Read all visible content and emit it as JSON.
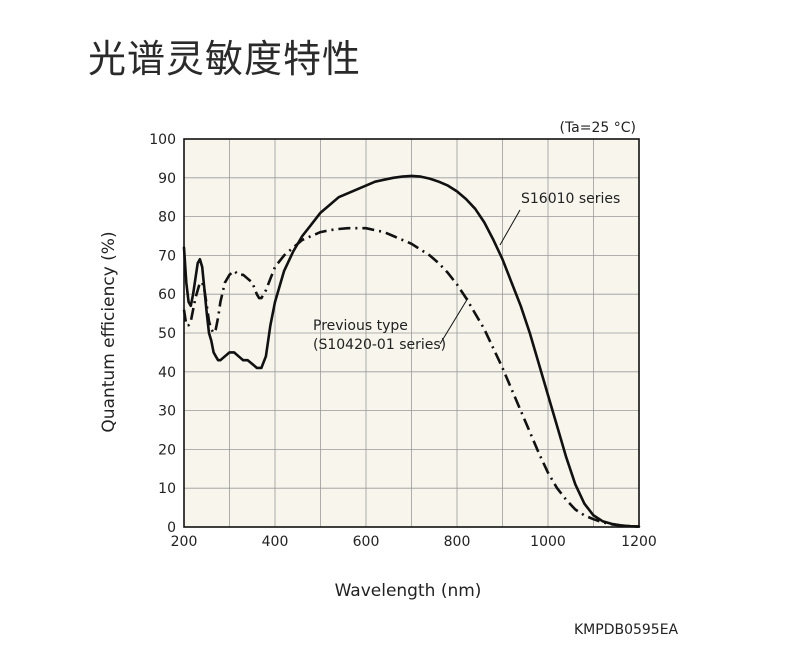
{
  "page": {
    "title": "光谱灵敏度特性",
    "figure_code": "KMPDB0595EA"
  },
  "chart_data": {
    "type": "line",
    "condition": "(Ta=25 °C)",
    "xlabel": "Wavelength (nm)",
    "ylabel": "Quantum efficiency (%)",
    "xlim": [
      200,
      1200
    ],
    "ylim": [
      0,
      100
    ],
    "xticks": [
      200,
      400,
      600,
      800,
      1000,
      1200
    ],
    "yticks": [
      0,
      10,
      20,
      30,
      40,
      50,
      60,
      70,
      80,
      90,
      100
    ],
    "grid": true,
    "series": [
      {
        "name": "S16010 series",
        "style": "solid",
        "color": "#111111",
        "points": [
          [
            200,
            72
          ],
          [
            205,
            63
          ],
          [
            210,
            58
          ],
          [
            215,
            57
          ],
          [
            220,
            60
          ],
          [
            225,
            64
          ],
          [
            230,
            68
          ],
          [
            235,
            69
          ],
          [
            240,
            67
          ],
          [
            245,
            61
          ],
          [
            250,
            55
          ],
          [
            255,
            50
          ],
          [
            260,
            48
          ],
          [
            265,
            45
          ],
          [
            270,
            44
          ],
          [
            275,
            43
          ],
          [
            280,
            43
          ],
          [
            290,
            44
          ],
          [
            300,
            45
          ],
          [
            310,
            45
          ],
          [
            320,
            44
          ],
          [
            330,
            43
          ],
          [
            340,
            43
          ],
          [
            350,
            42
          ],
          [
            360,
            41
          ],
          [
            370,
            41
          ],
          [
            380,
            44
          ],
          [
            390,
            52
          ],
          [
            400,
            58
          ],
          [
            420,
            66
          ],
          [
            440,
            71
          ],
          [
            460,
            75
          ],
          [
            480,
            78
          ],
          [
            500,
            81
          ],
          [
            520,
            83
          ],
          [
            540,
            85
          ],
          [
            560,
            86
          ],
          [
            580,
            87
          ],
          [
            600,
            88
          ],
          [
            620,
            89
          ],
          [
            640,
            89.5
          ],
          [
            660,
            90
          ],
          [
            680,
            90.3
          ],
          [
            700,
            90.5
          ],
          [
            720,
            90.3
          ],
          [
            740,
            89.8
          ],
          [
            760,
            89
          ],
          [
            780,
            88
          ],
          [
            800,
            86.5
          ],
          [
            820,
            84.5
          ],
          [
            840,
            82
          ],
          [
            860,
            78.5
          ],
          [
            880,
            74
          ],
          [
            900,
            69
          ],
          [
            920,
            63
          ],
          [
            940,
            57
          ],
          [
            960,
            50
          ],
          [
            980,
            42
          ],
          [
            1000,
            34
          ],
          [
            1020,
            26
          ],
          [
            1040,
            18
          ],
          [
            1060,
            11
          ],
          [
            1080,
            6
          ],
          [
            1100,
            3
          ],
          [
            1120,
            1.5
          ],
          [
            1140,
            0.8
          ],
          [
            1160,
            0.4
          ],
          [
            1180,
            0.2
          ],
          [
            1200,
            0.1
          ]
        ]
      },
      {
        "name": "Previous type (S10420-01 series)",
        "label_lines": [
          "Previous type",
          "(S10420-01 series)"
        ],
        "style": "dashdot",
        "color": "#111111",
        "points": [
          [
            200,
            56
          ],
          [
            205,
            52
          ],
          [
            210,
            52
          ],
          [
            215,
            53
          ],
          [
            220,
            56
          ],
          [
            225,
            59
          ],
          [
            230,
            61
          ],
          [
            235,
            63
          ],
          [
            240,
            63
          ],
          [
            245,
            61
          ],
          [
            250,
            57
          ],
          [
            255,
            53
          ],
          [
            260,
            51
          ],
          [
            265,
            50
          ],
          [
            270,
            51
          ],
          [
            275,
            54
          ],
          [
            280,
            58
          ],
          [
            290,
            63
          ],
          [
            300,
            65
          ],
          [
            310,
            66
          ],
          [
            320,
            65
          ],
          [
            330,
            65
          ],
          [
            340,
            64
          ],
          [
            350,
            63
          ],
          [
            360,
            60
          ],
          [
            365,
            59
          ],
          [
            370,
            59
          ],
          [
            380,
            61
          ],
          [
            390,
            64
          ],
          [
            400,
            67
          ],
          [
            420,
            70
          ],
          [
            440,
            72
          ],
          [
            460,
            74
          ],
          [
            480,
            75
          ],
          [
            500,
            76
          ],
          [
            520,
            76.5
          ],
          [
            540,
            76.8
          ],
          [
            560,
            77
          ],
          [
            580,
            77
          ],
          [
            600,
            77
          ],
          [
            620,
            76.5
          ],
          [
            640,
            76
          ],
          [
            660,
            75
          ],
          [
            680,
            74
          ],
          [
            700,
            73
          ],
          [
            720,
            71.5
          ],
          [
            740,
            70
          ],
          [
            760,
            68
          ],
          [
            780,
            65.5
          ],
          [
            800,
            62.5
          ],
          [
            820,
            59
          ],
          [
            840,
            55
          ],
          [
            860,
            51
          ],
          [
            880,
            46
          ],
          [
            900,
            41
          ],
          [
            920,
            35.5
          ],
          [
            940,
            30
          ],
          [
            960,
            24.5
          ],
          [
            980,
            19
          ],
          [
            1000,
            14
          ],
          [
            1020,
            10
          ],
          [
            1040,
            7
          ],
          [
            1060,
            4.5
          ],
          [
            1080,
            3
          ],
          [
            1100,
            2
          ],
          [
            1120,
            1.2
          ],
          [
            1140,
            0.7
          ],
          [
            1160,
            0.4
          ],
          [
            1180,
            0.2
          ],
          [
            1200,
            0.1
          ]
        ]
      }
    ]
  }
}
